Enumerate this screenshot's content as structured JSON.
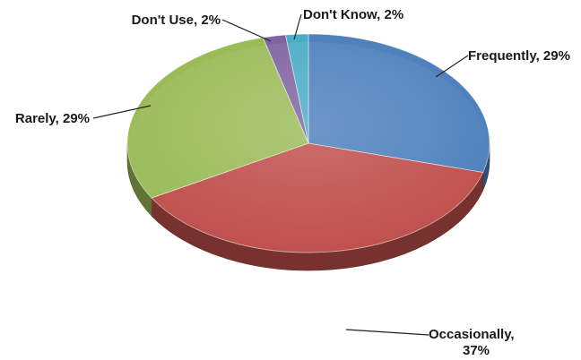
{
  "chart_data": {
    "type": "pie",
    "style": "3d-tilted",
    "title": "",
    "slices": [
      {
        "name": "Frequently",
        "value": 29,
        "label": "Frequently, 29%",
        "color": "#4F81BD"
      },
      {
        "name": "Occasionally",
        "value": 37,
        "label": "Occasionally,",
        "label2": "37%",
        "color": "#C0504D"
      },
      {
        "name": "Rarely",
        "value": 29,
        "label": "Rarely, 29%",
        "color": "#9BBB59"
      },
      {
        "name": "Don't Use",
        "value": 2,
        "label": "Don't Use, 2%",
        "color": "#8064A2"
      },
      {
        "name": "Don't Know",
        "value": 2,
        "label": "Don't Know, 2%",
        "color": "#4BACC6"
      }
    ]
  }
}
